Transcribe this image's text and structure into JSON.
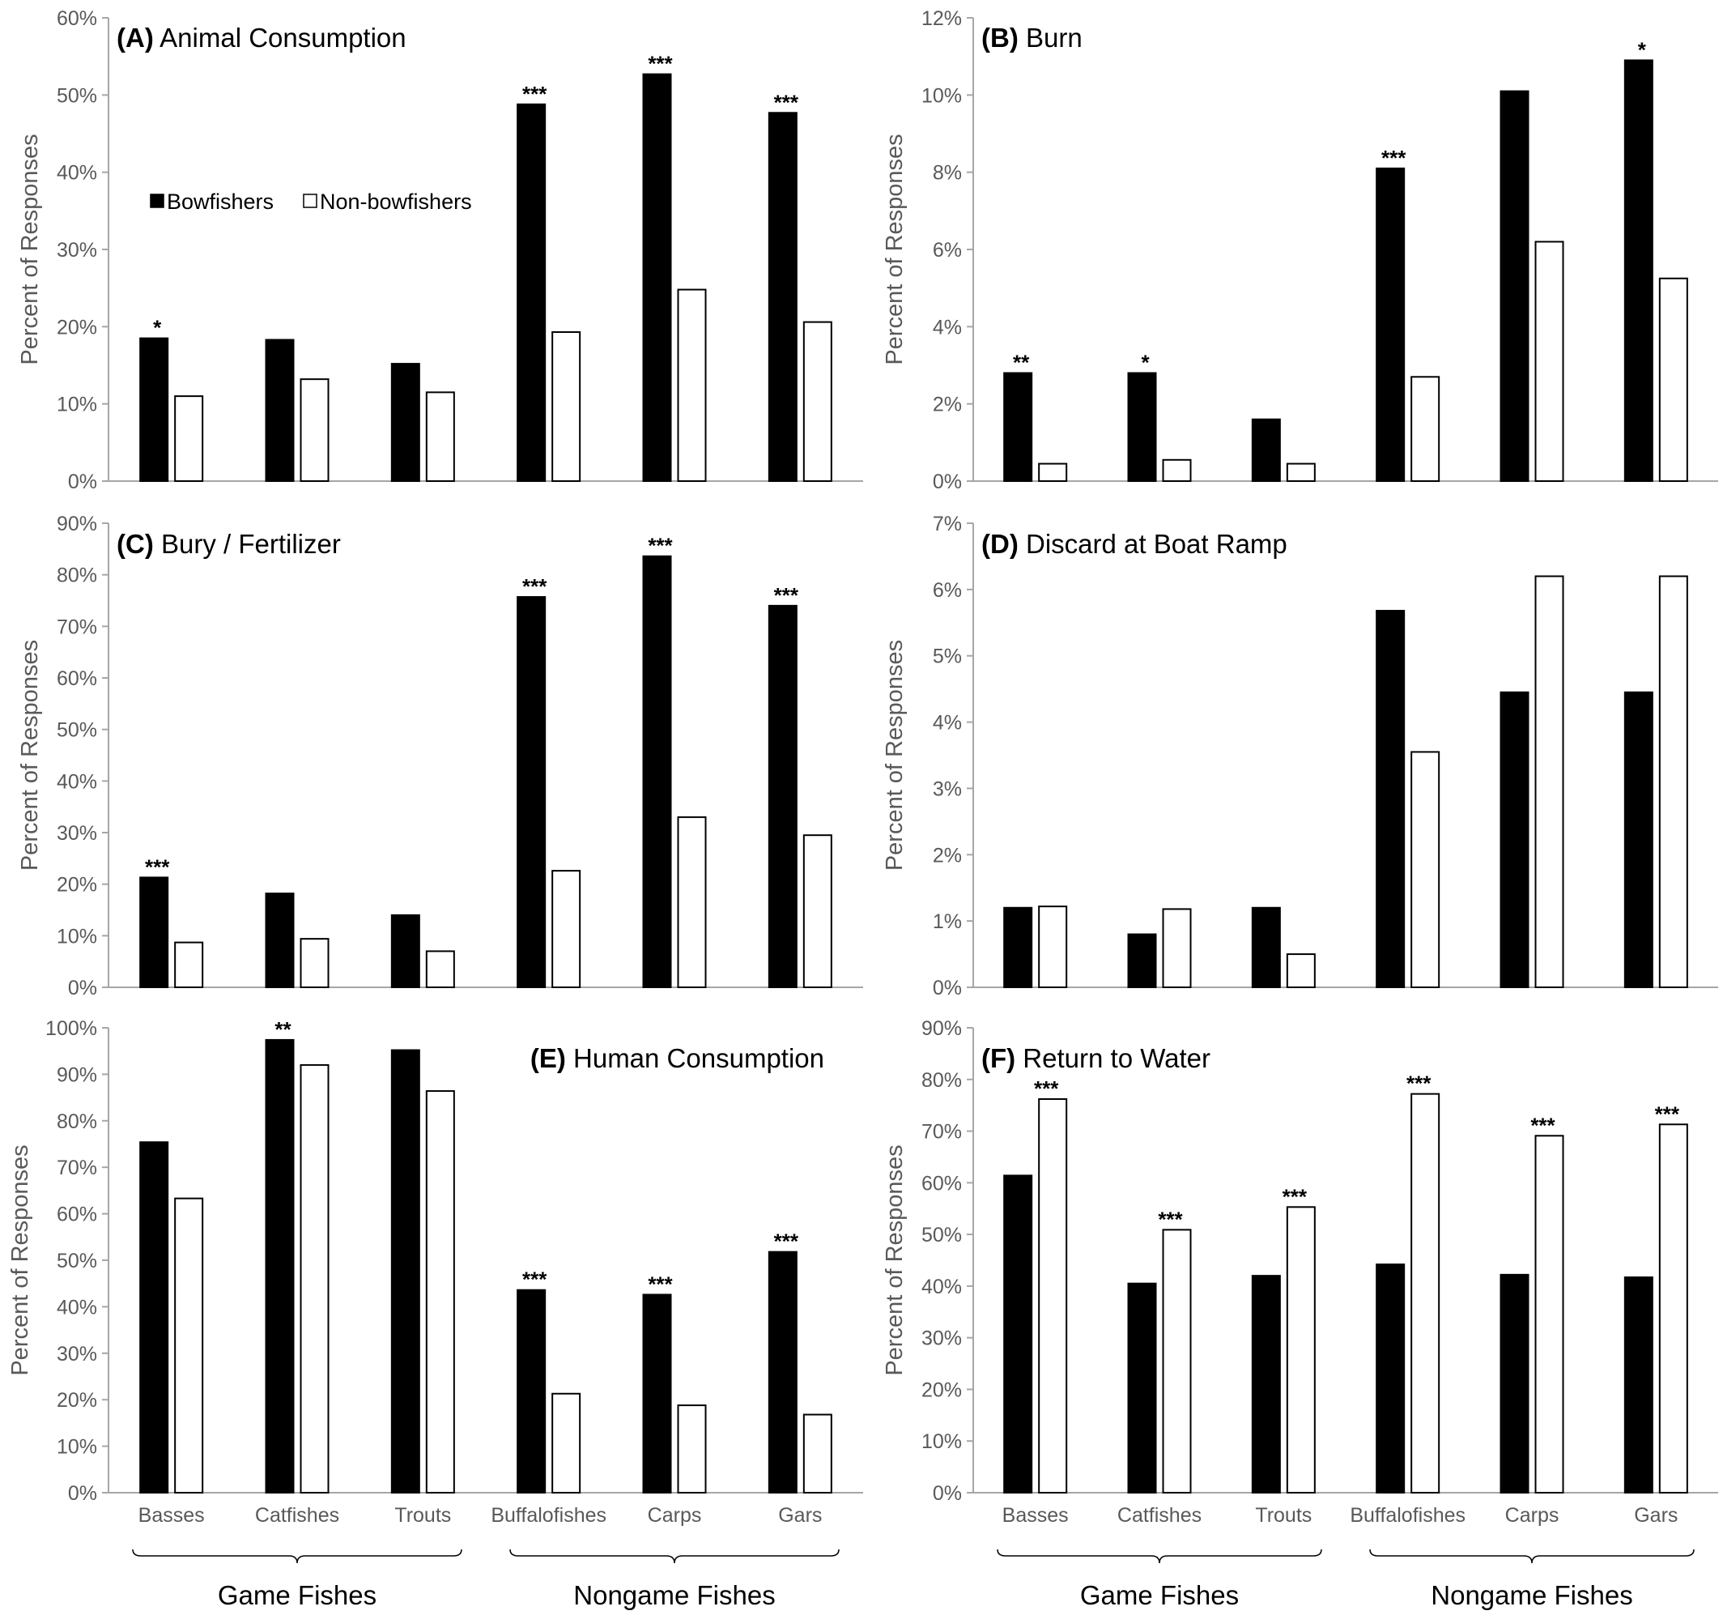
{
  "chart_data": [
    {
      "id": "A",
      "type": "bar",
      "title": "Animal Consumption",
      "panel_label": "(A)",
      "ylabel": "Percent of Responses",
      "ylim": [
        0,
        60
      ],
      "yticks": [
        0,
        10,
        20,
        30,
        40,
        50,
        60
      ],
      "ytick_labels": [
        "0%",
        "10%",
        "20%",
        "30%",
        "40%",
        "50%",
        "60%"
      ],
      "categories": [
        "Basses",
        "Catfishes",
        "Trouts",
        "Buffalofishes",
        "Carps",
        "Gars"
      ],
      "series": [
        {
          "name": "Bowfishers",
          "values": [
            18.5,
            18.3,
            15.2,
            48.8,
            52.7,
            47.7
          ]
        },
        {
          "name": "Non-bowfishers",
          "values": [
            11.0,
            13.2,
            11.5,
            19.3,
            24.8,
            20.6
          ]
        }
      ],
      "significance": [
        "*",
        "",
        "",
        "***",
        "***",
        "***"
      ],
      "legend": {
        "placement": "upper-left",
        "entries": [
          "Bowfishers",
          "Non-bowfishers"
        ]
      }
    },
    {
      "id": "B",
      "type": "bar",
      "title": "Burn",
      "panel_label": "(B)",
      "ylabel": "Percent of Responses",
      "ylim": [
        0,
        12
      ],
      "yticks": [
        0,
        2,
        4,
        6,
        8,
        10,
        12
      ],
      "ytick_labels": [
        "0%",
        "2%",
        "4%",
        "6%",
        "8%",
        "10%",
        "12%"
      ],
      "categories": [
        "Basses",
        "Catfishes",
        "Trouts",
        "Buffalofishes",
        "Carps",
        "Gars"
      ],
      "series": [
        {
          "name": "Bowfishers",
          "values": [
            2.8,
            2.8,
            1.6,
            8.1,
            10.1,
            10.9
          ]
        },
        {
          "name": "Non-bowfishers",
          "values": [
            0.45,
            0.55,
            0.45,
            2.7,
            6.2,
            5.25
          ]
        }
      ],
      "significance": [
        "**",
        "*",
        "",
        "***",
        "",
        "*"
      ]
    },
    {
      "id": "C",
      "type": "bar",
      "title": "Bury / Fertilizer",
      "panel_label": "(C)",
      "ylabel": "Percent of Responses",
      "ylim": [
        0,
        90
      ],
      "yticks": [
        0,
        10,
        20,
        30,
        40,
        50,
        60,
        70,
        80,
        90
      ],
      "ytick_labels": [
        "0%",
        "10%",
        "20%",
        "30%",
        "40%",
        "50%",
        "60%",
        "70%",
        "80%",
        "90%"
      ],
      "categories": [
        "Basses",
        "Catfishes",
        "Trouts",
        "Buffalofishes",
        "Carps",
        "Gars"
      ],
      "series": [
        {
          "name": "Bowfishers",
          "values": [
            21.3,
            18.2,
            14.0,
            75.7,
            83.6,
            74.0
          ]
        },
        {
          "name": "Non-bowfishers",
          "values": [
            8.7,
            9.4,
            7.0,
            22.6,
            33.0,
            29.5
          ]
        }
      ],
      "significance": [
        "***",
        "",
        "",
        "***",
        "***",
        "***"
      ]
    },
    {
      "id": "D",
      "type": "bar",
      "title": "Discard at Boat Ramp",
      "panel_label": "(D)",
      "ylabel": "Percent of Responses",
      "ylim": [
        0,
        7
      ],
      "yticks": [
        0,
        1,
        2,
        3,
        4,
        5,
        6,
        7
      ],
      "ytick_labels": [
        "0%",
        "1%",
        "2%",
        "3%",
        "4%",
        "5%",
        "6%",
        "7%"
      ],
      "categories": [
        "Basses",
        "Catfishes",
        "Trouts",
        "Buffalofishes",
        "Carps",
        "Gars"
      ],
      "series": [
        {
          "name": "Bowfishers",
          "values": [
            1.2,
            0.8,
            1.2,
            5.68,
            4.45,
            4.45
          ]
        },
        {
          "name": "Non-bowfishers",
          "values": [
            1.22,
            1.18,
            0.5,
            3.55,
            6.2,
            6.2
          ]
        }
      ],
      "significance": [
        "",
        "",
        "",
        "",
        "",
        ""
      ]
    },
    {
      "id": "E",
      "type": "bar",
      "title": "Human Consumption",
      "panel_label": "(E)",
      "ylabel": "Percent of Responses",
      "ylim": [
        0,
        100
      ],
      "yticks": [
        0,
        10,
        20,
        30,
        40,
        50,
        60,
        70,
        80,
        90,
        100
      ],
      "ytick_labels": [
        "0%",
        "10%",
        "20%",
        "30%",
        "40%",
        "50%",
        "60%",
        "70%",
        "80%",
        "90%",
        "100%"
      ],
      "categories": [
        "Basses",
        "Catfishes",
        "Trouts",
        "Buffalofishes",
        "Carps",
        "Gars"
      ],
      "series": [
        {
          "name": "Bowfishers",
          "values": [
            75.4,
            97.4,
            95.2,
            43.6,
            42.6,
            51.8
          ]
        },
        {
          "name": "Non-bowfishers",
          "values": [
            63.3,
            92.0,
            86.4,
            21.3,
            18.8,
            16.8
          ]
        }
      ],
      "significance": [
        "",
        "**",
        "",
        "***",
        "***",
        "***"
      ],
      "groups": [
        {
          "label": "Game Fishes",
          "categories": [
            "Basses",
            "Catfishes",
            "Trouts"
          ]
        },
        {
          "label": "Nongame Fishes",
          "categories": [
            "Buffalofishes",
            "Carps",
            "Gars"
          ]
        }
      ]
    },
    {
      "id": "F",
      "type": "bar",
      "title": "Return to Water",
      "panel_label": "(F)",
      "ylabel": "Percent of Responses",
      "ylim": [
        0,
        90
      ],
      "yticks": [
        0,
        10,
        20,
        30,
        40,
        50,
        60,
        70,
        80,
        90
      ],
      "ytick_labels": [
        "0%",
        "10%",
        "20%",
        "30%",
        "40%",
        "50%",
        "60%",
        "70%",
        "80%",
        "90%"
      ],
      "categories": [
        "Basses",
        "Catfishes",
        "Trouts",
        "Buffalofishes",
        "Carps",
        "Gars"
      ],
      "series": [
        {
          "name": "Bowfishers",
          "values": [
            61.4,
            40.5,
            42.0,
            44.2,
            42.2,
            41.7
          ]
        },
        {
          "name": "Non-bowfishers",
          "values": [
            76.2,
            50.9,
            55.3,
            77.2,
            69.1,
            71.3
          ]
        }
      ],
      "significance": [
        "***",
        "***",
        "***",
        "***",
        "***",
        "***"
      ],
      "groups": [
        {
          "label": "Game Fishes",
          "categories": [
            "Basses",
            "Catfishes",
            "Trouts"
          ]
        },
        {
          "label": "Nongame Fishes",
          "categories": [
            "Buffalofishes",
            "Carps",
            "Gars"
          ]
        }
      ]
    }
  ],
  "colors": {
    "bowfishers": "#000000",
    "non_bowfishers": "#ffffff",
    "axis": "#a6a6a6",
    "text": "#595959"
  }
}
